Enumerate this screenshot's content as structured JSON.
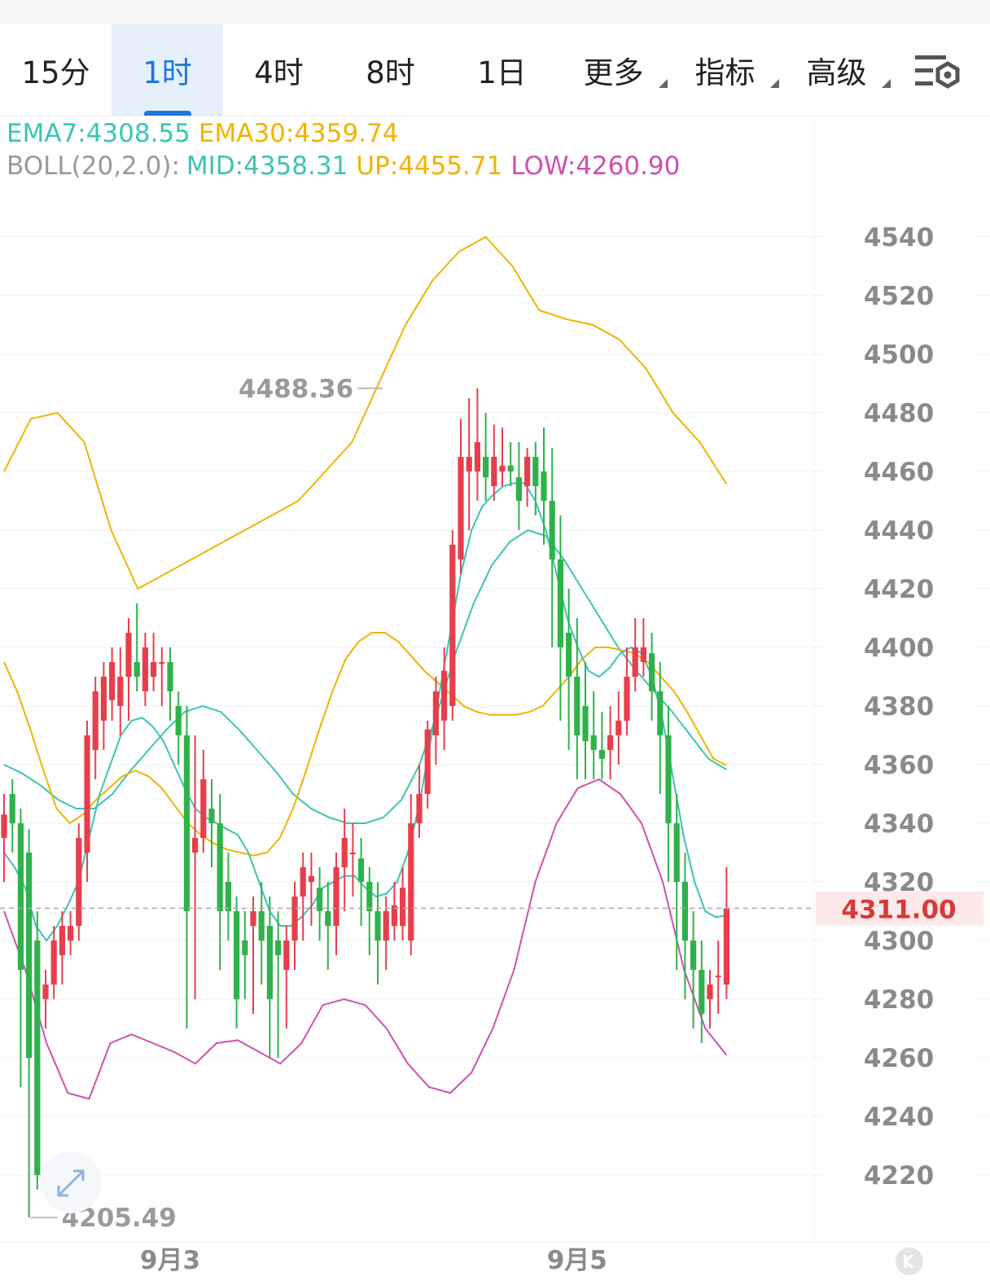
{
  "tabs": [
    {
      "label": "15分",
      "active": false,
      "caret": false
    },
    {
      "label": "1时",
      "active": true,
      "caret": false
    },
    {
      "label": "4时",
      "active": false,
      "caret": false
    },
    {
      "label": "8时",
      "active": false,
      "caret": false
    },
    {
      "label": "1日",
      "active": false,
      "caret": false
    },
    {
      "label": "更多",
      "active": false,
      "caret": true
    },
    {
      "label": "指标",
      "active": false,
      "caret": true
    },
    {
      "label": "高级",
      "active": false,
      "caret": true
    }
  ],
  "indicators": {
    "ema7": "EMA7:4308.55",
    "ema30": "EMA30:4359.74",
    "boll_prefix": "BOLL(20,2.0):",
    "mid": "MID:4358.31",
    "up": "UP:4455.71",
    "low": "LOW:4260.90"
  },
  "colors": {
    "up": "#e83e4b",
    "down": "#2fb24a",
    "ema7": "#3cc4b4",
    "ema30": "#f0b400",
    "boll_mid": "#3cc4b4",
    "boll_up": "#f0b400",
    "boll_low": "#d050b0",
    "price_tag": "#d63a3a",
    "accent": "#1d76db"
  },
  "chart_data": {
    "type": "candlestick",
    "ylim": [
      4200,
      4550
    ],
    "y_ticks": [
      4540,
      4520,
      4500,
      4480,
      4460,
      4440,
      4420,
      4400,
      4380,
      4360,
      4340,
      4320,
      4300,
      4280,
      4260,
      4240,
      4220
    ],
    "x_labels": [
      {
        "label": "9月3",
        "index": 20
      },
      {
        "label": "9月5",
        "index": 69
      }
    ],
    "current_price": 4311.0,
    "current_price_label": "4311.00",
    "high_label": {
      "index": 46,
      "value": 4488.36,
      "text": "4488.36"
    },
    "low_label": {
      "index": 3,
      "value": 4205.49,
      "text": "4205.49"
    },
    "candles": [
      [
        4335,
        4350,
        4343,
        4320
      ],
      [
        4350,
        4355,
        4340,
        4330
      ],
      [
        4340,
        4345,
        4290,
        4250
      ],
      [
        4330,
        4338,
        4260,
        4205.49
      ],
      [
        4300,
        4310,
        4220,
        4215
      ],
      [
        4280,
        4290,
        4285,
        4270
      ],
      [
        4285,
        4305,
        4300,
        4280
      ],
      [
        4295,
        4310,
        4305,
        4285
      ],
      [
        4300,
        4310,
        4305,
        4295
      ],
      [
        4305,
        4340,
        4335,
        4300
      ],
      [
        4330,
        4375,
        4370,
        4320
      ],
      [
        4365,
        4390,
        4385,
        4355
      ],
      [
        4375,
        4395,
        4390,
        4365
      ],
      [
        4382,
        4400,
        4395,
        4375
      ],
      [
        4380,
        4400,
        4390,
        4370
      ],
      [
        4390,
        4410,
        4405,
        4375
      ],
      [
        4395,
        4415,
        4390,
        4385
      ],
      [
        4385,
        4405,
        4400,
        4380
      ],
      [
        4390,
        4405,
        4395,
        4385
      ],
      [
        4395,
        4400,
        4395,
        4380
      ],
      [
        4395,
        4400,
        4385,
        4375
      ],
      [
        4380,
        4385,
        4370,
        4360
      ],
      [
        4370,
        4380,
        4310,
        4270
      ],
      [
        4330,
        4370,
        4335,
        4280
      ],
      [
        4335,
        4365,
        4355,
        4330
      ],
      [
        4345,
        4355,
        4340,
        4325
      ],
      [
        4340,
        4350,
        4310,
        4290
      ],
      [
        4320,
        4330,
        4310,
        4300
      ],
      [
        4310,
        4315,
        4280,
        4270
      ],
      [
        4300,
        4310,
        4295,
        4280
      ],
      [
        4305,
        4315,
        4310,
        4275
      ],
      [
        4310,
        4320,
        4300,
        4285
      ],
      [
        4305,
        4315,
        4280,
        4260
      ],
      [
        4300,
        4310,
        4295,
        4260
      ],
      [
        4290,
        4305,
        4300,
        4270
      ],
      [
        4300,
        4320,
        4315,
        4290
      ],
      [
        4315,
        4330,
        4325,
        4300
      ],
      [
        4320,
        4330,
        4322,
        4305
      ],
      [
        4318,
        4325,
        4310,
        4300
      ],
      [
        4310,
        4320,
        4305,
        4290
      ],
      [
        4305,
        4330,
        4325,
        4295
      ],
      [
        4325,
        4345,
        4335,
        4310
      ],
      [
        4330,
        4340,
        4330,
        4315
      ],
      [
        4328,
        4335,
        4320,
        4305
      ],
      [
        4320,
        4325,
        4310,
        4295
      ],
      [
        4310,
        4320,
        4300,
        4285
      ],
      [
        4300,
        4315,
        4310,
        4290
      ],
      [
        4305,
        4320,
        4312,
        4300
      ],
      [
        4305,
        4325,
        4318,
        4300
      ],
      [
        4300,
        4350,
        4340,
        4295
      ],
      [
        4340,
        4360,
        4350,
        4335
      ],
      [
        4350,
        4375,
        4372,
        4345
      ],
      [
        4370,
        4390,
        4385,
        4360
      ],
      [
        4375,
        4400,
        4392,
        4365
      ],
      [
        4380,
        4440,
        4435,
        4375
      ],
      [
        4430,
        4478,
        4465,
        4425
      ],
      [
        4460,
        4485,
        4465,
        4440
      ],
      [
        4460,
        4488.36,
        4470,
        4450
      ],
      [
        4465,
        4480,
        4458,
        4450
      ],
      [
        4455,
        4476,
        4465,
        4450
      ],
      [
        4460,
        4475,
        4462,
        4455
      ],
      [
        4462,
        4470,
        4460,
        4455
      ],
      [
        4458,
        4470,
        4450,
        4440
      ],
      [
        4455,
        4468,
        4465,
        4448
      ],
      [
        4465,
        4470,
        4455,
        4445
      ],
      [
        4460,
        4475,
        4450,
        4435
      ],
      [
        4450,
        4468,
        4430,
        4400
      ],
      [
        4430,
        4445,
        4400,
        4375
      ],
      [
        4405,
        4420,
        4390,
        4365
      ],
      [
        4390,
        4410,
        4370,
        4355
      ],
      [
        4380,
        4395,
        4368,
        4355
      ],
      [
        4370,
        4385,
        4365,
        4355
      ],
      [
        4365,
        4378,
        4362,
        4355
      ],
      [
        4365,
        4380,
        4370,
        4355
      ],
      [
        4370,
        4385,
        4375,
        4360
      ],
      [
        4375,
        4400,
        4390,
        4370
      ],
      [
        4390,
        4410,
        4400,
        4385
      ],
      [
        4395,
        4410,
        4400,
        4390
      ],
      [
        4398,
        4405,
        4385,
        4375
      ],
      [
        4385,
        4395,
        4370,
        4350
      ],
      [
        4370,
        4380,
        4340,
        4320
      ],
      [
        4340,
        4350,
        4320,
        4290
      ],
      [
        4320,
        4330,
        4300,
        4280
      ],
      [
        4300,
        4310,
        4290,
        4270
      ],
      [
        4290,
        4300,
        4275,
        4265
      ],
      [
        4280,
        4290,
        4285,
        4270
      ],
      [
        4288,
        4300,
        4288,
        4275
      ],
      [
        4285,
        4325,
        4311,
        4280
      ]
    ],
    "ema7": [
      4330,
      4325,
      4318,
      4305,
      4300,
      4305,
      4312,
      4320,
      4335,
      4350,
      4360,
      4370,
      4375,
      4376,
      4373,
      4368,
      4360,
      4352,
      4345,
      4342,
      4340,
      4338,
      4336,
      4330,
      4320,
      4310,
      4305,
      4305,
      4308,
      4312,
      4318,
      4320,
      4322,
      4322,
      4318,
      4315,
      4316,
      4320,
      4330,
      4345,
      4365,
      4385,
      4405,
      4425,
      4440,
      4448,
      4452,
      4455,
      4456,
      4456,
      4450,
      4440,
      4425,
      4410,
      4400,
      4392,
      4390,
      4393,
      4398,
      4400,
      4398,
      4390,
      4375,
      4355,
      4335,
      4320,
      4310,
      4308,
      4308.55
    ],
    "ema30": [
      4395,
      4385,
      4372,
      4358,
      4345,
      4340,
      4343,
      4348,
      4352,
      4356,
      4358,
      4356,
      4352,
      4346,
      4340,
      4336,
      4333,
      4331,
      4330,
      4329,
      4330,
      4335,
      4345,
      4358,
      4372,
      4385,
      4396,
      4402,
      4405,
      4405,
      4402,
      4397,
      4392,
      4388,
      4384,
      4380,
      4378,
      4377,
      4377,
      4377,
      4378,
      4380,
      4385,
      4390,
      4396,
      4400,
      4400,
      4399,
      4398,
      4395,
      4390,
      4385,
      4378,
      4370,
      4362,
      4359.74
    ],
    "boll_mid": [
      4360,
      4357,
      4353,
      4348,
      4345,
      4345,
      4350,
      4358,
      4365,
      4372,
      4378,
      4380,
      4378,
      4372,
      4365,
      4358,
      4350,
      4345,
      4342,
      4340,
      4340,
      4342,
      4348,
      4360,
      4378,
      4398,
      4415,
      4428,
      4436,
      4440,
      4438,
      4430,
      4420,
      4410,
      4400,
      4392,
      4385,
      4378,
      4370,
      4362,
      4358.31
    ],
    "boll_up": [
      4460,
      4478,
      4480,
      4470,
      4440,
      4420,
      4425,
      4430,
      4435,
      4440,
      4445,
      4450,
      4460,
      4470,
      4490,
      4510,
      4525,
      4535,
      4540,
      4530,
      4515,
      4512,
      4510,
      4505,
      4495,
      4480,
      4470,
      4455.71
    ],
    "boll_low": [
      4310,
      4290,
      4265,
      4248,
      4246,
      4265,
      4268,
      4265,
      4262,
      4258,
      4265,
      4266,
      4262,
      4258,
      4265,
      4278,
      4280,
      4278,
      4270,
      4258,
      4250,
      4248,
      4255,
      4270,
      4290,
      4320,
      4340,
      4352,
      4355,
      4350,
      4340,
      4320,
      4290,
      4270,
      4260.9
    ]
  }
}
